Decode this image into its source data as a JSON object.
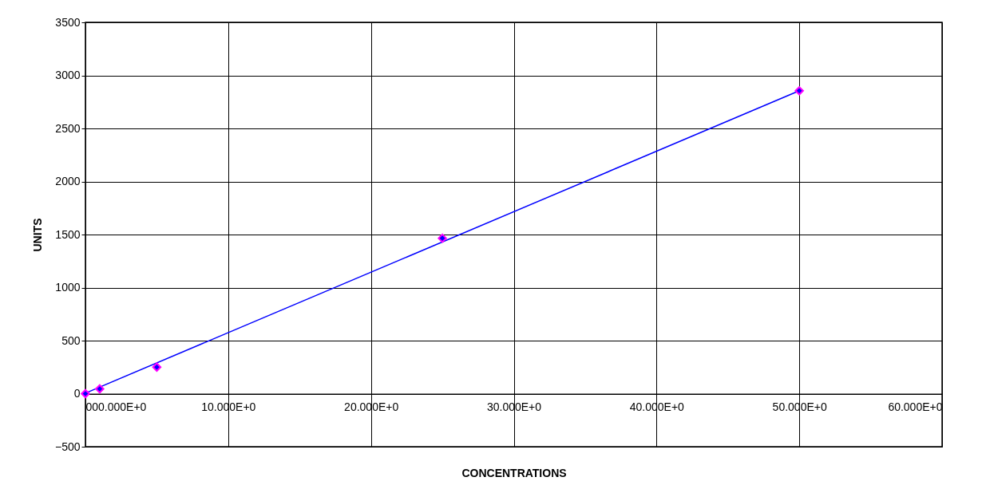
{
  "chart_data": {
    "type": "scatter",
    "xlabel": "CONCENTRATIONS",
    "ylabel": "UNITS",
    "xlim": [
      0,
      60
    ],
    "ylim": [
      -500,
      3500
    ],
    "xticks": [
      {
        "value": 0,
        "label": "000.000E+0"
      },
      {
        "value": 10,
        "label": "10.000E+0"
      },
      {
        "value": 20,
        "label": "20.000E+0"
      },
      {
        "value": 30,
        "label": "30.000E+0"
      },
      {
        "value": 40,
        "label": "40.000E+0"
      },
      {
        "value": 50,
        "label": "50.000E+0"
      },
      {
        "value": 60,
        "label": "60.000E+0"
      }
    ],
    "yticks": [
      -500,
      0,
      500,
      1000,
      1500,
      2000,
      2500,
      3000,
      3500
    ],
    "grid": true,
    "series": [
      {
        "color": "#0000ff",
        "marker": "diamond",
        "x": [
          0,
          1,
          5,
          25,
          50
        ],
        "values": [
          0,
          45,
          250,
          1465,
          2855
        ]
      },
      {
        "type": "line",
        "color": "#0000ff",
        "x": [
          0,
          50
        ],
        "values": [
          5,
          2855
        ],
        "line_style": "solid"
      }
    ]
  }
}
